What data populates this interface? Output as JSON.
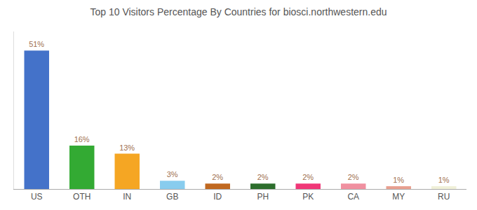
{
  "chart_data": {
    "type": "bar",
    "title": "Top 10 Visitors Percentage By Countries for biosci.northwestern.edu",
    "categories": [
      "US",
      "OTH",
      "IN",
      "GB",
      "ID",
      "PH",
      "PK",
      "CA",
      "MY",
      "RU"
    ],
    "values": [
      51,
      16,
      13,
      3,
      2,
      2,
      2,
      2,
      1,
      1
    ],
    "value_labels": [
      "51%",
      "16%",
      "13%",
      "3%",
      "2%",
      "2%",
      "2%",
      "2%",
      "1%",
      "1%"
    ],
    "data_labels": true,
    "colors": [
      "#4472c9",
      "#33aa33",
      "#f5a623",
      "#88ccee",
      "#c06820",
      "#2d6e2d",
      "#f03878",
      "#f090a0",
      "#e8a090",
      "#f0f0d8"
    ],
    "ylim": [
      0,
      58
    ],
    "grid": false,
    "tick_labels": "x"
  }
}
